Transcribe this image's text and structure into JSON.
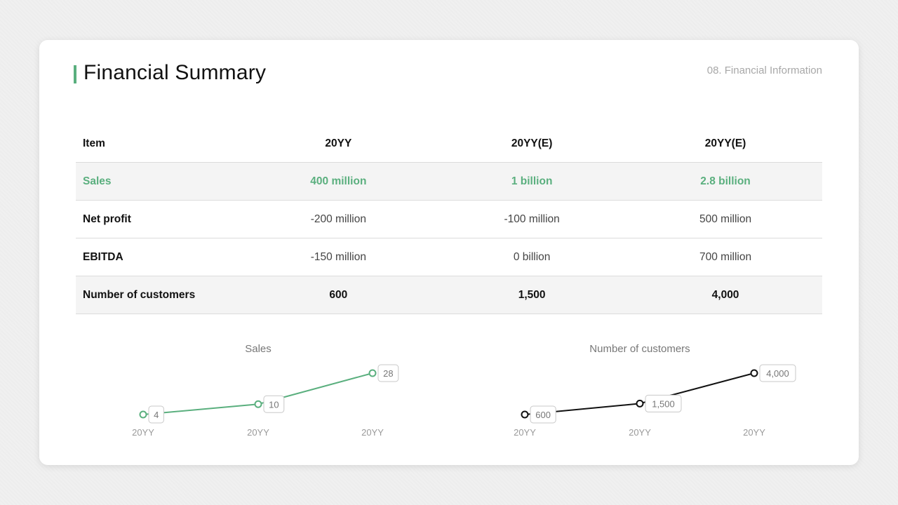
{
  "header": {
    "title": "Financial Summary",
    "section": "08. Financial Information"
  },
  "table": {
    "columns": [
      "Item",
      "20YY",
      "20YY(E)",
      "20YY(E)"
    ],
    "rows": [
      {
        "label": "Sales",
        "values": [
          "400 million",
          "1 billion",
          "2.8 billion"
        ]
      },
      {
        "label": "Net profit",
        "values": [
          "-200 million",
          "-100 million",
          "500 million"
        ]
      },
      {
        "label": "EBITDA",
        "values": [
          "-150 million",
          "0 billion",
          "700 million"
        ]
      },
      {
        "label": "Number of customers",
        "values": [
          "600",
          "1,500",
          "4,000"
        ]
      }
    ]
  },
  "colors": {
    "accent": "#5aaf7e",
    "dark": "#111111"
  },
  "chart_data": [
    {
      "type": "line",
      "title": "Sales",
      "categories": [
        "20YY",
        "20YY",
        "20YY"
      ],
      "values": [
        4,
        10,
        28
      ],
      "labels": [
        "4",
        "10",
        "28"
      ],
      "color": "#5aaf7e",
      "ylim": [
        4,
        28
      ]
    },
    {
      "type": "line",
      "title": "Number of customers",
      "categories": [
        "20YY",
        "20YY",
        "20YY"
      ],
      "values": [
        600,
        1500,
        4000
      ],
      "labels": [
        "600",
        "1,500",
        "4,000"
      ],
      "color": "#111111",
      "ylim": [
        600,
        4000
      ]
    }
  ]
}
